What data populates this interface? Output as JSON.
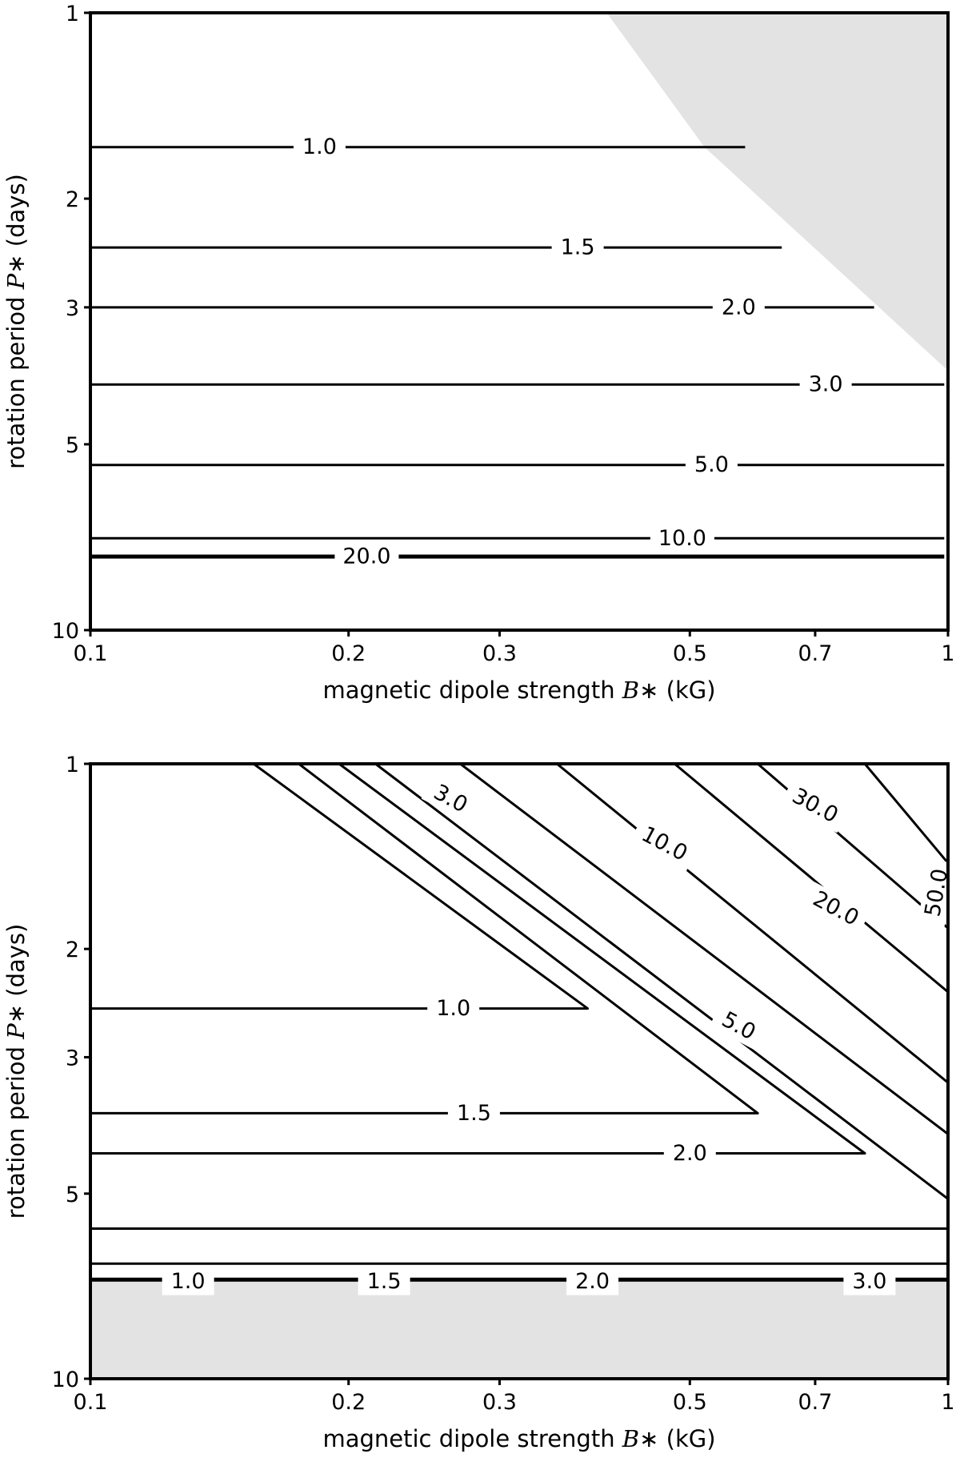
{
  "chart_data": [
    {
      "type": "contour",
      "xlabel": "magnetic dipole strength B∗ (kG)",
      "xlabel_parts": {
        "prefix": "magnetic dipole strength ",
        "symbol": "B",
        "sub": "∗",
        "suffix": " (kG)"
      },
      "ylabel": "rotation period P∗ (days)",
      "ylabel_parts": {
        "prefix": "rotation period ",
        "symbol": "P",
        "sub": "∗",
        "suffix": " (days)"
      },
      "x_scale": "log",
      "y_scale": "log",
      "y_inverted": true,
      "xlim": [
        0.1,
        1
      ],
      "ylim": [
        1,
        10
      ],
      "x_ticks": [
        0.1,
        0.2,
        0.3,
        0.5,
        0.7,
        1
      ],
      "x_tick_labels": [
        "0.1",
        "0.2",
        "0.3",
        "0.5",
        "0.7",
        "1"
      ],
      "y_ticks": [
        1,
        2,
        3,
        5,
        10
      ],
      "y_tick_labels": [
        "1",
        "2",
        "3",
        "5",
        "10"
      ],
      "excluded_region": {
        "color": "#e3e3e3",
        "polygon": [
          [
            0.4,
            1.0
          ],
          [
            1.0,
            1.0
          ],
          [
            1.0,
            3.8
          ],
          [
            0.52,
            1.65
          ]
        ]
      },
      "contours": [
        {
          "level": "1.0",
          "points": [
            [
              0.1,
              1.65
            ],
            [
              0.58,
              1.65
            ]
          ],
          "label_at": [
            0.185,
            1.65
          ]
        },
        {
          "level": "1.5",
          "points": [
            [
              0.1,
              2.4
            ],
            [
              0.64,
              2.4
            ]
          ],
          "label_at": [
            0.37,
            2.4
          ]
        },
        {
          "level": "2.0",
          "points": [
            [
              0.1,
              3.0
            ],
            [
              0.82,
              3.0
            ]
          ],
          "label_at": [
            0.57,
            3.0
          ]
        },
        {
          "level": "3.0",
          "points": [
            [
              0.1,
              4.0
            ],
            [
              0.99,
              4.0
            ]
          ],
          "label_at": [
            0.72,
            4.0
          ]
        },
        {
          "level": "5.0",
          "points": [
            [
              0.1,
              5.4
            ],
            [
              0.99,
              5.4
            ]
          ],
          "label_at": [
            0.53,
            5.4
          ]
        },
        {
          "level": "10.0",
          "points": [
            [
              0.1,
              7.1
            ],
            [
              0.99,
              7.1
            ]
          ],
          "label_at": [
            0.49,
            7.1
          ]
        },
        {
          "level": "20.0",
          "points": [
            [
              0.1,
              7.6
            ],
            [
              0.99,
              7.6
            ]
          ],
          "label_at": [
            0.21,
            7.6
          ],
          "heavy": true
        }
      ]
    },
    {
      "type": "contour",
      "xlabel": "magnetic dipole strength B∗ (kG)",
      "xlabel_parts": {
        "prefix": "magnetic dipole strength ",
        "symbol": "B",
        "sub": "∗",
        "suffix": " (kG)"
      },
      "ylabel": "rotation period P∗ (days)",
      "ylabel_parts": {
        "prefix": "rotation period ",
        "symbol": "P",
        "sub": "∗",
        "suffix": " (days)"
      },
      "x_scale": "log",
      "y_scale": "log",
      "y_inverted": true,
      "xlim": [
        0.1,
        1
      ],
      "ylim": [
        1,
        10
      ],
      "x_ticks": [
        0.1,
        0.2,
        0.3,
        0.5,
        0.7,
        1
      ],
      "x_tick_labels": [
        "0.1",
        "0.2",
        "0.3",
        "0.5",
        "0.7",
        "1"
      ],
      "y_ticks": [
        1,
        2,
        3,
        5,
        10
      ],
      "y_tick_labels": [
        "1",
        "2",
        "3",
        "5",
        "10"
      ],
      "excluded_region": {
        "color": "#e3e3e3",
        "polygon": [
          [
            0.1,
            6.9
          ],
          [
            1.0,
            6.9
          ],
          [
            1.0,
            10.0
          ],
          [
            0.1,
            10.0
          ]
        ]
      },
      "contours": [
        {
          "level": "1.0",
          "points": [
            [
              0.1,
              2.5
            ],
            [
              0.38,
              2.5
            ],
            [
              0.155,
              1.0
            ]
          ],
          "label_at": [
            0.265,
            2.5
          ]
        },
        {
          "level": "1.5",
          "points": [
            [
              0.1,
              3.7
            ],
            [
              0.6,
              3.7
            ],
            [
              0.175,
              1.0
            ]
          ],
          "label_at": [
            0.28,
            3.7
          ]
        },
        {
          "level": "2.0",
          "points": [
            [
              0.1,
              4.3
            ],
            [
              0.8,
              4.3
            ],
            [
              0.195,
              1.0
            ]
          ],
          "label_at": [
            0.5,
            4.3
          ]
        },
        {
          "level": "3.0",
          "points": [
            [
              0.1,
              5.7
            ],
            [
              1.0,
              5.7
            ],
            [
              1.0,
              5.1
            ],
            [
              0.215,
              1.0
            ]
          ],
          "label_at": [
            0.263,
            1.14
          ],
          "label_rot": 28
        },
        {
          "level": "5.0",
          "points": [
            [
              0.1,
              6.5
            ],
            [
              1.0,
              6.5
            ],
            [
              1.0,
              4.0
            ],
            [
              0.27,
              1.0
            ]
          ],
          "label_at": [
            0.57,
            2.67
          ],
          "label_rot": 28
        },
        {
          "level": "10.0",
          "points": [
            [
              1.0,
              3.3
            ],
            [
              0.35,
              1.0
            ]
          ],
          "label_at": [
            0.467,
            1.35
          ],
          "label_rot": 28
        },
        {
          "level": "20.0",
          "points": [
            [
              1.0,
              2.35
            ],
            [
              0.48,
              1.0
            ]
          ],
          "label_at": [
            0.74,
            1.72
          ],
          "label_rot": 28
        },
        {
          "level": "30.0",
          "points": [
            [
              1.0,
              1.85
            ],
            [
              0.6,
              1.0
            ]
          ],
          "label_at": [
            0.7,
            1.17
          ],
          "label_rot": 28
        },
        {
          "level": "50.0",
          "points": [
            [
              1.0,
              1.45
            ],
            [
              0.8,
              1.0
            ]
          ],
          "label_at": [
            0.97,
            1.62
          ],
          "label_rot": -80
        }
      ],
      "heavy_boundary": [
        [
          0.1,
          6.9
        ],
        [
          1.0,
          6.9
        ]
      ],
      "boundary_labels": [
        {
          "text": "1.0",
          "at": [
            0.13,
            6.95
          ]
        },
        {
          "text": "1.5",
          "at": [
            0.22,
            6.95
          ]
        },
        {
          "text": "2.0",
          "at": [
            0.385,
            6.95
          ]
        },
        {
          "text": "3.0",
          "at": [
            0.81,
            6.95
          ]
        }
      ]
    }
  ]
}
